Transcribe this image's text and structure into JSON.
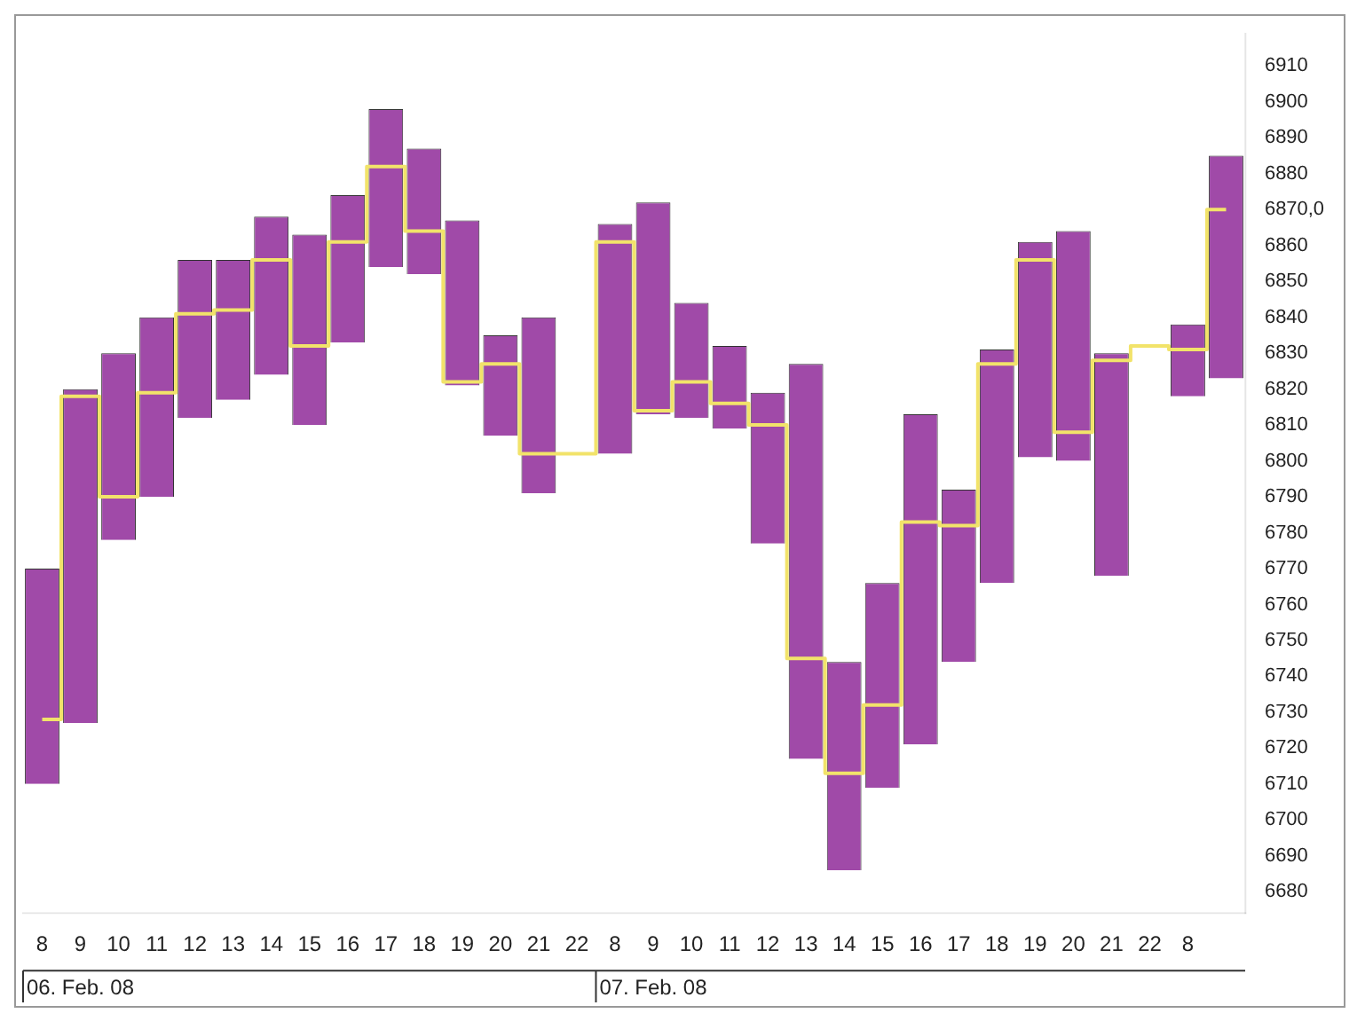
{
  "chart_data": {
    "type": "bar",
    "categories": [
      "8",
      "9",
      "10",
      "11",
      "12",
      "13",
      "14",
      "15",
      "16",
      "17",
      "18",
      "19",
      "20",
      "21",
      "22",
      "8",
      "9",
      "10",
      "11",
      "12",
      "13",
      "14",
      "15",
      "16",
      "17",
      "18",
      "19",
      "20",
      "21",
      "22",
      "8",
      null
    ],
    "series": [
      {
        "color": "#a04aa8",
        "base": [
          6710,
          6727,
          6778,
          6790,
          6812,
          6817,
          6824,
          6810,
          6833,
          6854,
          6852,
          6821,
          6807,
          6791,
          null,
          6802,
          6813,
          6812,
          6809,
          6777,
          6717,
          6686,
          6709,
          6721,
          6744,
          6766,
          6801,
          6800,
          6768,
          null,
          6818,
          6823
        ],
        "values": [
          60,
          93,
          52,
          50,
          44,
          39,
          44,
          53,
          41,
          44,
          35,
          46,
          28,
          49,
          null,
          64,
          59,
          32,
          23,
          42,
          110,
          58,
          57,
          92,
          48,
          65,
          60,
          64,
          62,
          null,
          20,
          62
        ]
      },
      {
        "type": "step",
        "color": "#f2e36a",
        "values": [
          6728,
          6818,
          6790,
          6819,
          6841,
          6842,
          6856,
          6832,
          6861,
          6882,
          6864,
          6822,
          6827,
          6802,
          6802,
          6861,
          6814,
          6822,
          6816,
          6810,
          6745,
          6713,
          6732,
          6783,
          6782,
          6827,
          6856,
          6808,
          6828,
          6832,
          6831,
          6870
        ]
      }
    ],
    "ylim": [
      6674,
      6919
    ],
    "yticks": [
      6680,
      6690,
      6700,
      6710,
      6720,
      6730,
      6740,
      6750,
      6760,
      6770,
      6780,
      6790,
      6800,
      6810,
      6820,
      6830,
      6840,
      6850,
      6860,
      {
        "value": 6870,
        "label": "6870,0"
      },
      6880,
      6890,
      6900,
      6910
    ],
    "annotations": [
      "06. Feb. 08",
      "07. Feb. 08"
    ],
    "grid": false,
    "legend": false
  }
}
